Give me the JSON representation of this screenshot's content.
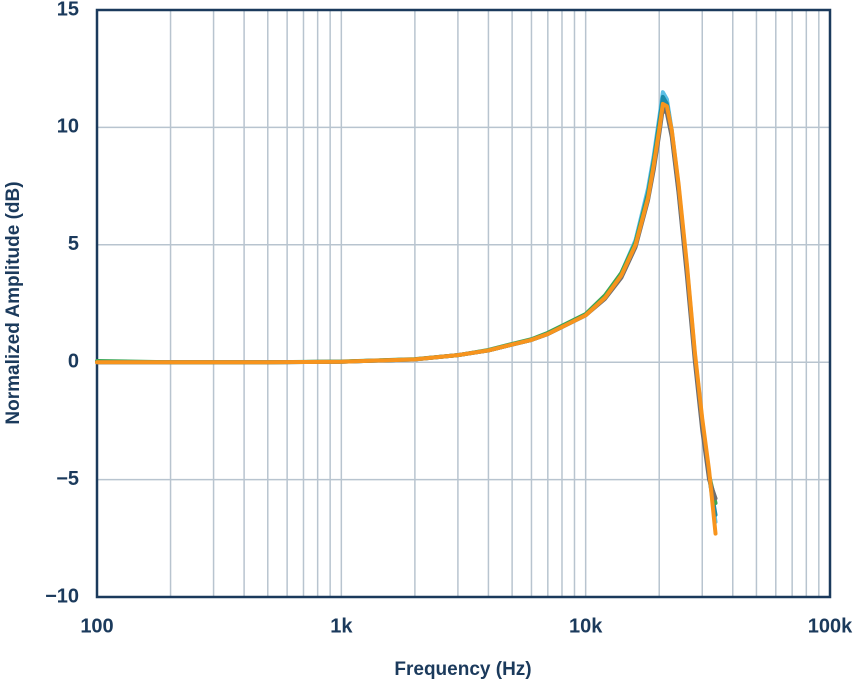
{
  "chart_data": {
    "type": "line",
    "xlabel": "Frequency (Hz)",
    "ylabel": "Normalized Amplitude (dB)",
    "xscale": "log",
    "grid": true,
    "xlim": [
      100,
      100000
    ],
    "ylim": [
      -10,
      15
    ],
    "xticks": [
      100,
      {
        "value": 1000,
        "label": "1k"
      },
      {
        "value": 10000,
        "label": "10k"
      },
      {
        "value": 100000,
        "label": "100k"
      }
    ],
    "xminorticks": [
      200,
      300,
      400,
      500,
      600,
      700,
      800,
      900,
      2000,
      3000,
      4000,
      5000,
      6000,
      7000,
      8000,
      9000,
      20000,
      30000,
      40000,
      50000,
      60000,
      70000,
      80000,
      90000
    ],
    "yticks": [
      {
        "value": -10,
        "label": "−10"
      },
      {
        "value": -5,
        "label": "−5"
      },
      0,
      5,
      10,
      15
    ],
    "x": [
      100,
      200,
      500,
      1000,
      2000,
      3000,
      4000,
      5000,
      6000,
      7000,
      8000,
      10000,
      12000,
      14000,
      16000,
      18000,
      19000,
      20000,
      20700,
      21500,
      22500,
      24000,
      26000,
      28000,
      30000,
      32000,
      34000
    ],
    "series": [
      {
        "color": "#5bbfe6",
        "values": [
          0,
          0,
          0,
          0.02,
          0.12,
          0.3,
          0.5,
          0.75,
          0.95,
          1.2,
          1.5,
          2.0,
          2.8,
          3.8,
          5.2,
          7.4,
          8.8,
          10.4,
          11.5,
          11.2,
          9.9,
          7.5,
          4.0,
          0.3,
          -2.5,
          -4.8,
          -6.8
        ]
      },
      {
        "color": "#1a8aa8",
        "values": [
          0,
          0,
          0,
          0.02,
          0.12,
          0.3,
          0.5,
          0.75,
          0.95,
          1.2,
          1.5,
          2.0,
          2.8,
          3.8,
          5.1,
          7.2,
          8.6,
          10.2,
          11.3,
          11.0,
          9.8,
          7.4,
          3.9,
          0.2,
          -2.6,
          -4.9,
          -6.5
        ]
      },
      {
        "color": "#3aa655",
        "values": [
          0.05,
          0,
          0,
          0.03,
          0.13,
          0.3,
          0.52,
          0.78,
          0.98,
          1.25,
          1.55,
          2.05,
          2.85,
          3.8,
          5.1,
          7.1,
          8.5,
          10.0,
          11.0,
          10.8,
          9.7,
          7.3,
          3.8,
          0.2,
          -2.7,
          -4.8,
          -6.0
        ]
      },
      {
        "color": "#6d6e71",
        "values": [
          0,
          0,
          0,
          0.02,
          0.12,
          0.3,
          0.5,
          0.75,
          0.95,
          1.2,
          1.5,
          2.0,
          2.7,
          3.6,
          4.9,
          6.9,
          8.2,
          9.7,
          10.8,
          10.6,
          9.6,
          7.2,
          3.6,
          0.0,
          -2.9,
          -5.0,
          -5.8
        ]
      },
      {
        "color": "#f7941d",
        "values": [
          0,
          0,
          0,
          0.02,
          0.12,
          0.3,
          0.5,
          0.75,
          0.95,
          1.2,
          1.5,
          2.0,
          2.75,
          3.7,
          5.0,
          7.0,
          8.4,
          9.9,
          11.0,
          10.9,
          9.9,
          7.6,
          4.1,
          0.4,
          -2.4,
          -4.6,
          -7.3
        ]
      }
    ]
  }
}
